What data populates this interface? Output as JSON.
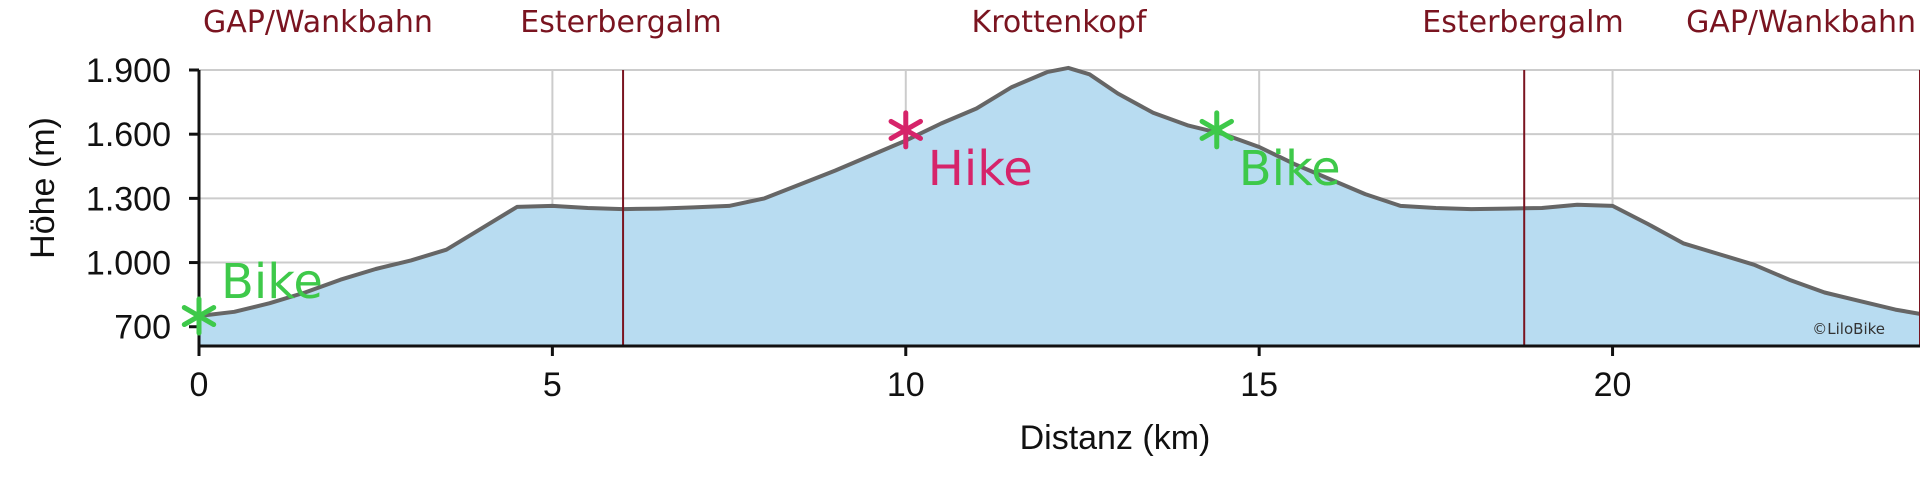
{
  "chart_data": {
    "type": "area",
    "xlabel": "Distanz (km)",
    "ylabel": "Höhe (m)",
    "xlim": [
      0,
      24.35
    ],
    "ylim": [
      610,
      1900
    ],
    "x_ticks": [
      0,
      5,
      10,
      15,
      20
    ],
    "x_tick_labels": [
      "0",
      "5",
      "10",
      "15",
      "20"
    ],
    "y_ticks": [
      700,
      1000,
      1300,
      1600,
      1900
    ],
    "y_tick_labels": [
      "700",
      "1.000",
      "1.300",
      "1.600",
      "1.900"
    ],
    "grid": true,
    "colors": {
      "fill": "#b8dcf1",
      "line": "#666666",
      "waypoint": "#7a1420",
      "hike": "#d6246a",
      "bike": "#3ec94a",
      "grid": "#cccccc"
    },
    "series": [
      {
        "x": [
          0,
          0.5,
          1,
          1.5,
          2,
          2.5,
          3,
          3.5,
          4,
          4.5,
          5,
          5.5,
          6,
          6.5,
          7,
          7.5,
          8,
          8.5,
          9,
          9.5,
          10,
          10.5,
          11,
          11.5,
          12,
          12.3,
          12.6,
          13,
          13.5,
          14,
          14.5,
          15,
          15.5,
          16,
          16.5,
          17,
          17.5,
          18,
          18.5,
          19,
          19.5,
          20,
          20.5,
          21,
          21.5,
          22,
          22.5,
          23,
          23.5,
          24,
          24.35
        ],
        "y": [
          750,
          770,
          810,
          860,
          920,
          970,
          1010,
          1060,
          1160,
          1260,
          1265,
          1255,
          1250,
          1252,
          1258,
          1265,
          1300,
          1365,
          1430,
          1500,
          1570,
          1650,
          1720,
          1820,
          1890,
          1910,
          1880,
          1790,
          1700,
          1640,
          1600,
          1540,
          1460,
          1390,
          1320,
          1265,
          1255,
          1250,
          1252,
          1255,
          1270,
          1265,
          1180,
          1090,
          1040,
          990,
          920,
          860,
          820,
          780,
          760
        ]
      }
    ],
    "waypoints": [
      {
        "name": "GAP/Wankbahn",
        "x": 0
      },
      {
        "name": "Esterbergalm",
        "x": 6
      },
      {
        "name": "Krottenkopf",
        "x": 12.3
      },
      {
        "name": "Esterbergalm",
        "x": 18.75
      },
      {
        "name": "GAP/Wankbahn",
        "x": 24.35
      }
    ],
    "markers": [
      {
        "label": "Bike",
        "x": 0,
        "y": 750,
        "color": "#3ec94a"
      },
      {
        "label": "Hike",
        "x": 10,
        "y": 1620,
        "color": "#d6246a"
      },
      {
        "label": "Bike",
        "x": 14.4,
        "y": 1620,
        "color": "#3ec94a"
      }
    ],
    "annotation": "©LiloBike"
  }
}
